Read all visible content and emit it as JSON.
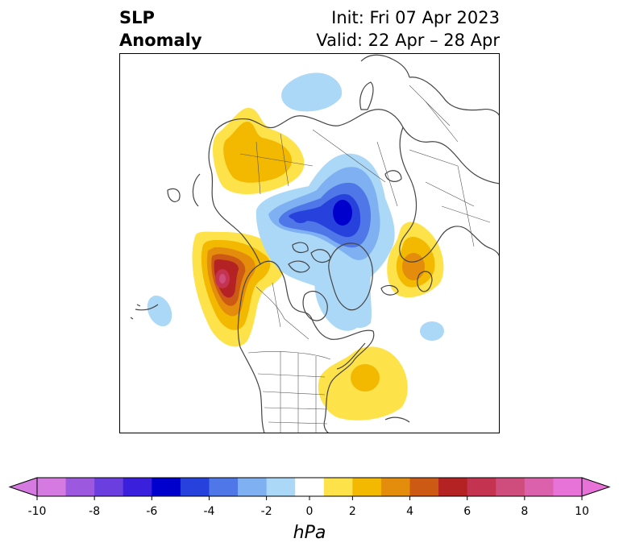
{
  "title": {
    "left_line1": "SLP",
    "left_line2": "Anomaly",
    "init": "Init: Fri 07 Apr 2023",
    "valid": "Valid: 22 Apr – 28 Apr"
  },
  "colorbar": {
    "unit": "hPa",
    "ticks": [
      "-10",
      "-8",
      "-6",
      "-4",
      "-2",
      "0",
      "2",
      "4",
      "6",
      "8",
      "10"
    ],
    "levels": [
      -10,
      -9,
      -8,
      -7,
      -6,
      -5,
      -4,
      -3,
      -2,
      -1,
      1,
      2,
      3,
      4,
      5,
      6,
      7,
      8,
      9,
      10
    ],
    "colors": [
      "#d47ae0",
      "#9d58e0",
      "#6b3ee0",
      "#3a1fdc",
      "#0000cd",
      "#2742dc",
      "#4f77e8",
      "#7eb0f2",
      "#acd8f7",
      "#ffffff",
      "#fde24a",
      "#f3b800",
      "#e48c0b",
      "#cd5a14",
      "#b42224",
      "#c43450",
      "#cf4d7d",
      "#dc61ad",
      "#e873d8"
    ],
    "under_color": "#d47ae0",
    "over_color": "#e873d8"
  },
  "map": {
    "projection": "north-polar-stereographic",
    "anomalies": [
      {
        "region": "Gulf of Alaska / NE Pacific",
        "sign": "positive",
        "peak_hPa": 8
      },
      {
        "region": "Siberia / Bering",
        "sign": "positive",
        "peak_hPa": 3
      },
      {
        "region": "Scandinavia",
        "sign": "positive",
        "peak_hPa": 4
      },
      {
        "region": "Western Atlantic",
        "sign": "positive",
        "peak_hPa": 3
      },
      {
        "region": "Arctic Ocean / Canadian Archipelago",
        "sign": "negative",
        "peak_hPa": -5
      },
      {
        "region": "Barents / Kara Sea",
        "sign": "negative",
        "peak_hPa": -2
      },
      {
        "region": "Greenland / Labrador",
        "sign": "negative",
        "peak_hPa": -2
      },
      {
        "region": "Central North Pacific",
        "sign": "negative",
        "peak_hPa": -2
      },
      {
        "region": "North Atlantic near Azores",
        "sign": "negative",
        "peak_hPa": -2
      }
    ]
  }
}
